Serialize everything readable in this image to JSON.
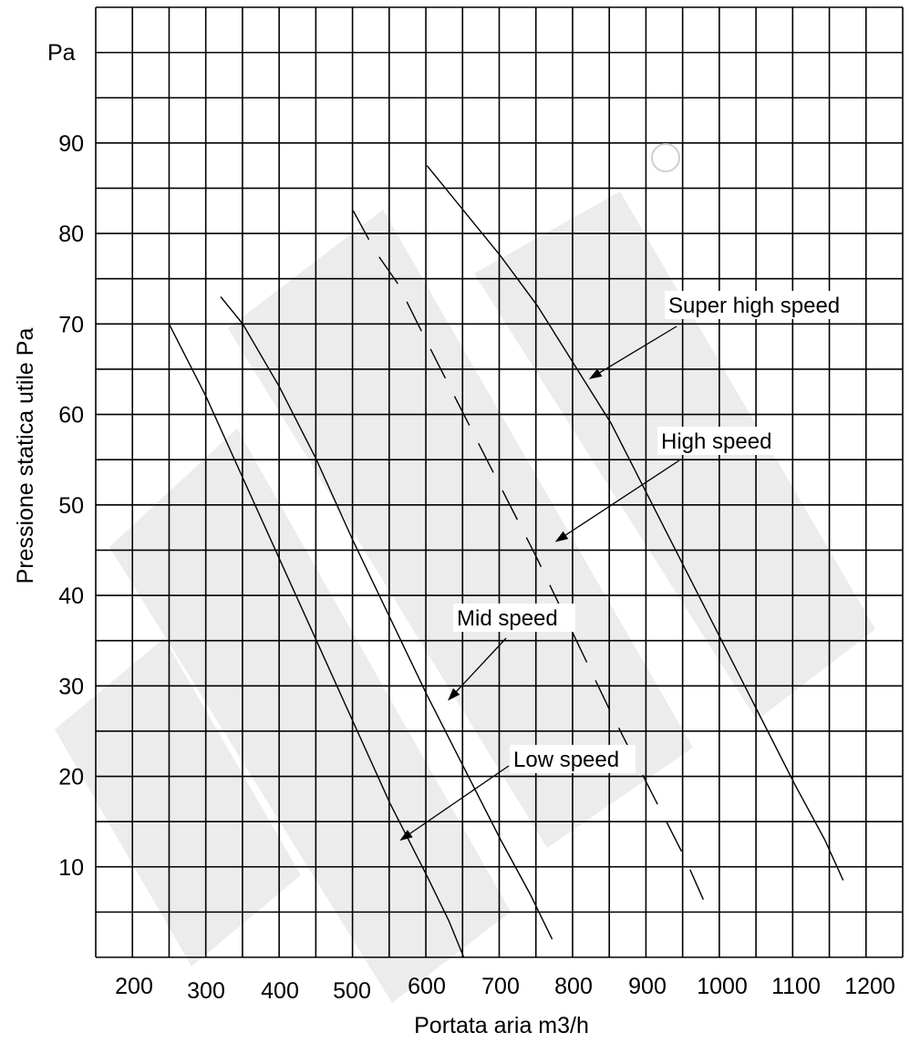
{
  "chart_data": {
    "type": "line",
    "title": "",
    "xlabel": "Portata aria m3/h",
    "ylabel": "Pressione statica utile Pa",
    "y_unit_label": "Pa",
    "xlim": [
      200,
      1200
    ],
    "ylim": [
      0,
      100
    ],
    "x_ticks": [
      "200",
      "300",
      "400",
      "500",
      "600",
      "700",
      "800",
      "900",
      "1000",
      "1100",
      "1200"
    ],
    "y_ticks": [
      "10",
      "20",
      "30",
      "40",
      "50",
      "60",
      "70",
      "80",
      "90"
    ],
    "grid": true,
    "series": [
      {
        "name": "Low speed",
        "style": "solid",
        "points": [
          [
            250,
            70
          ],
          [
            300,
            62
          ],
          [
            350,
            53
          ],
          [
            400,
            44
          ],
          [
            450,
            35
          ],
          [
            500,
            26
          ],
          [
            550,
            17
          ],
          [
            600,
            9
          ],
          [
            630,
            4
          ],
          [
            650,
            0
          ]
        ]
      },
      {
        "name": "Mid speed",
        "style": "solid",
        "points": [
          [
            320,
            73
          ],
          [
            350,
            70
          ],
          [
            400,
            63
          ],
          [
            450,
            55
          ],
          [
            500,
            46
          ],
          [
            550,
            37.5
          ],
          [
            600,
            29
          ],
          [
            650,
            21
          ],
          [
            700,
            13
          ],
          [
            740,
            7
          ],
          [
            770,
            2
          ]
        ]
      },
      {
        "name": "High speed",
        "style": "dashed",
        "points": [
          [
            500,
            82.5
          ],
          [
            530,
            78
          ],
          [
            560,
            74.5
          ],
          [
            600,
            68
          ],
          [
            650,
            60
          ],
          [
            700,
            52
          ],
          [
            750,
            44
          ],
          [
            800,
            35.5
          ],
          [
            850,
            27
          ],
          [
            900,
            19
          ],
          [
            950,
            11
          ],
          [
            980,
            5.5
          ]
        ]
      },
      {
        "name": "Super high speed",
        "style": "solid",
        "points": [
          [
            600,
            87.5
          ],
          [
            650,
            82.5
          ],
          [
            700,
            77.5
          ],
          [
            750,
            72
          ],
          [
            800,
            65.5
          ],
          [
            850,
            59
          ],
          [
            900,
            51
          ],
          [
            950,
            43
          ],
          [
            1000,
            35
          ],
          [
            1050,
            27
          ],
          [
            1100,
            19
          ],
          [
            1140,
            13
          ],
          [
            1165,
            8.5
          ]
        ]
      }
    ],
    "annotations": [
      {
        "text": "Super high speed",
        "arrow_to": [
          822,
          64
        ]
      },
      {
        "text": "High speed",
        "arrow_to": [
          776,
          46
        ]
      },
      {
        "text": "Mid speed",
        "arrow_to": [
          630,
          28.5
        ]
      },
      {
        "text": "Low speed",
        "arrow_to": [
          565,
          13
        ]
      }
    ]
  }
}
